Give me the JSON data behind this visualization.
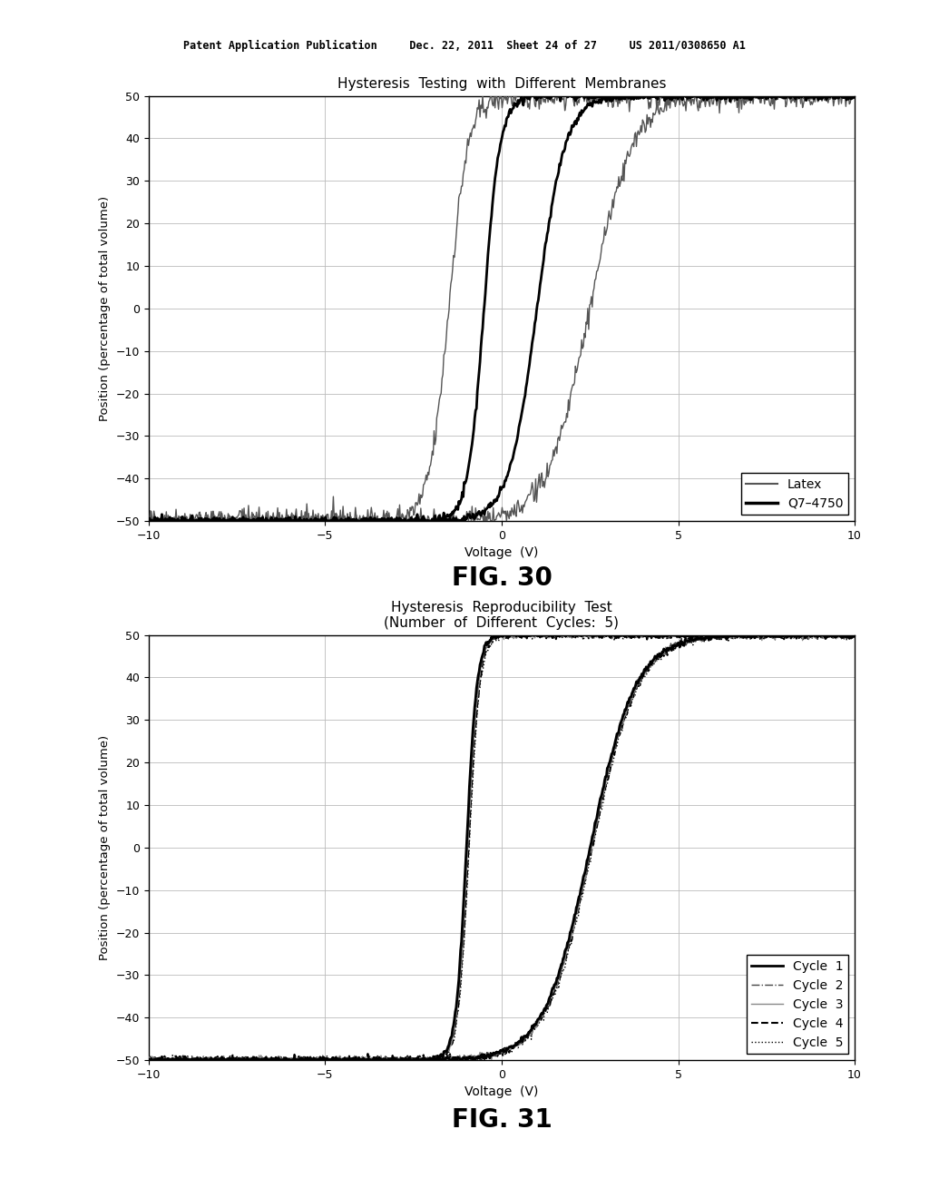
{
  "fig30": {
    "title": "Hysteresis  Testing  with  Different  Membranes",
    "xlabel": "Voltage  (V)",
    "ylabel": "Position (percentage of total volume)",
    "xlim": [
      -10,
      10
    ],
    "ylim": [
      -50,
      50
    ],
    "xticks": [
      -10,
      -5,
      0,
      5,
      10
    ],
    "yticks": [
      -50,
      -40,
      -30,
      -20,
      -10,
      0,
      10,
      20,
      30,
      40,
      50
    ],
    "legend_labels": [
      "Latex",
      "Q7–4750"
    ]
  },
  "fig31": {
    "title": "Hysteresis  Reproducibility  Test\n(Number  of  Different  Cycles:  5)",
    "xlabel": "Voltage  (V)",
    "ylabel": "Position (percentage of total volume)",
    "xlim": [
      -10,
      10
    ],
    "ylim": [
      -50,
      50
    ],
    "xticks": [
      -10,
      -5,
      0,
      5,
      10
    ],
    "yticks": [
      -50,
      -40,
      -30,
      -20,
      -10,
      0,
      10,
      20,
      30,
      40,
      50
    ],
    "legend_labels": [
      "Cycle  1",
      "Cycle  2",
      "Cycle  3",
      "Cycle  4",
      "Cycle  5"
    ],
    "cycle_styles": [
      {
        "color": "#000000",
        "lw": 2.0,
        "ls": "solid"
      },
      {
        "color": "#444444",
        "lw": 1.0,
        "ls": "dashdot"
      },
      {
        "color": "#888888",
        "lw": 1.0,
        "ls": "solid"
      },
      {
        "color": "#000000",
        "lw": 1.5,
        "ls": "dashed"
      },
      {
        "color": "#000000",
        "lw": 1.0,
        "ls": "dotted"
      }
    ]
  },
  "header_text": "Patent Application Publication     Dec. 22, 2011  Sheet 24 of 27     US 2011/0308650 A1",
  "fig30_label": "FIG. 30",
  "fig31_label": "FIG. 31",
  "bg_color": "#ffffff",
  "grid_color": "#bbbbbb",
  "axes_color": "#000000",
  "text_color": "#000000"
}
